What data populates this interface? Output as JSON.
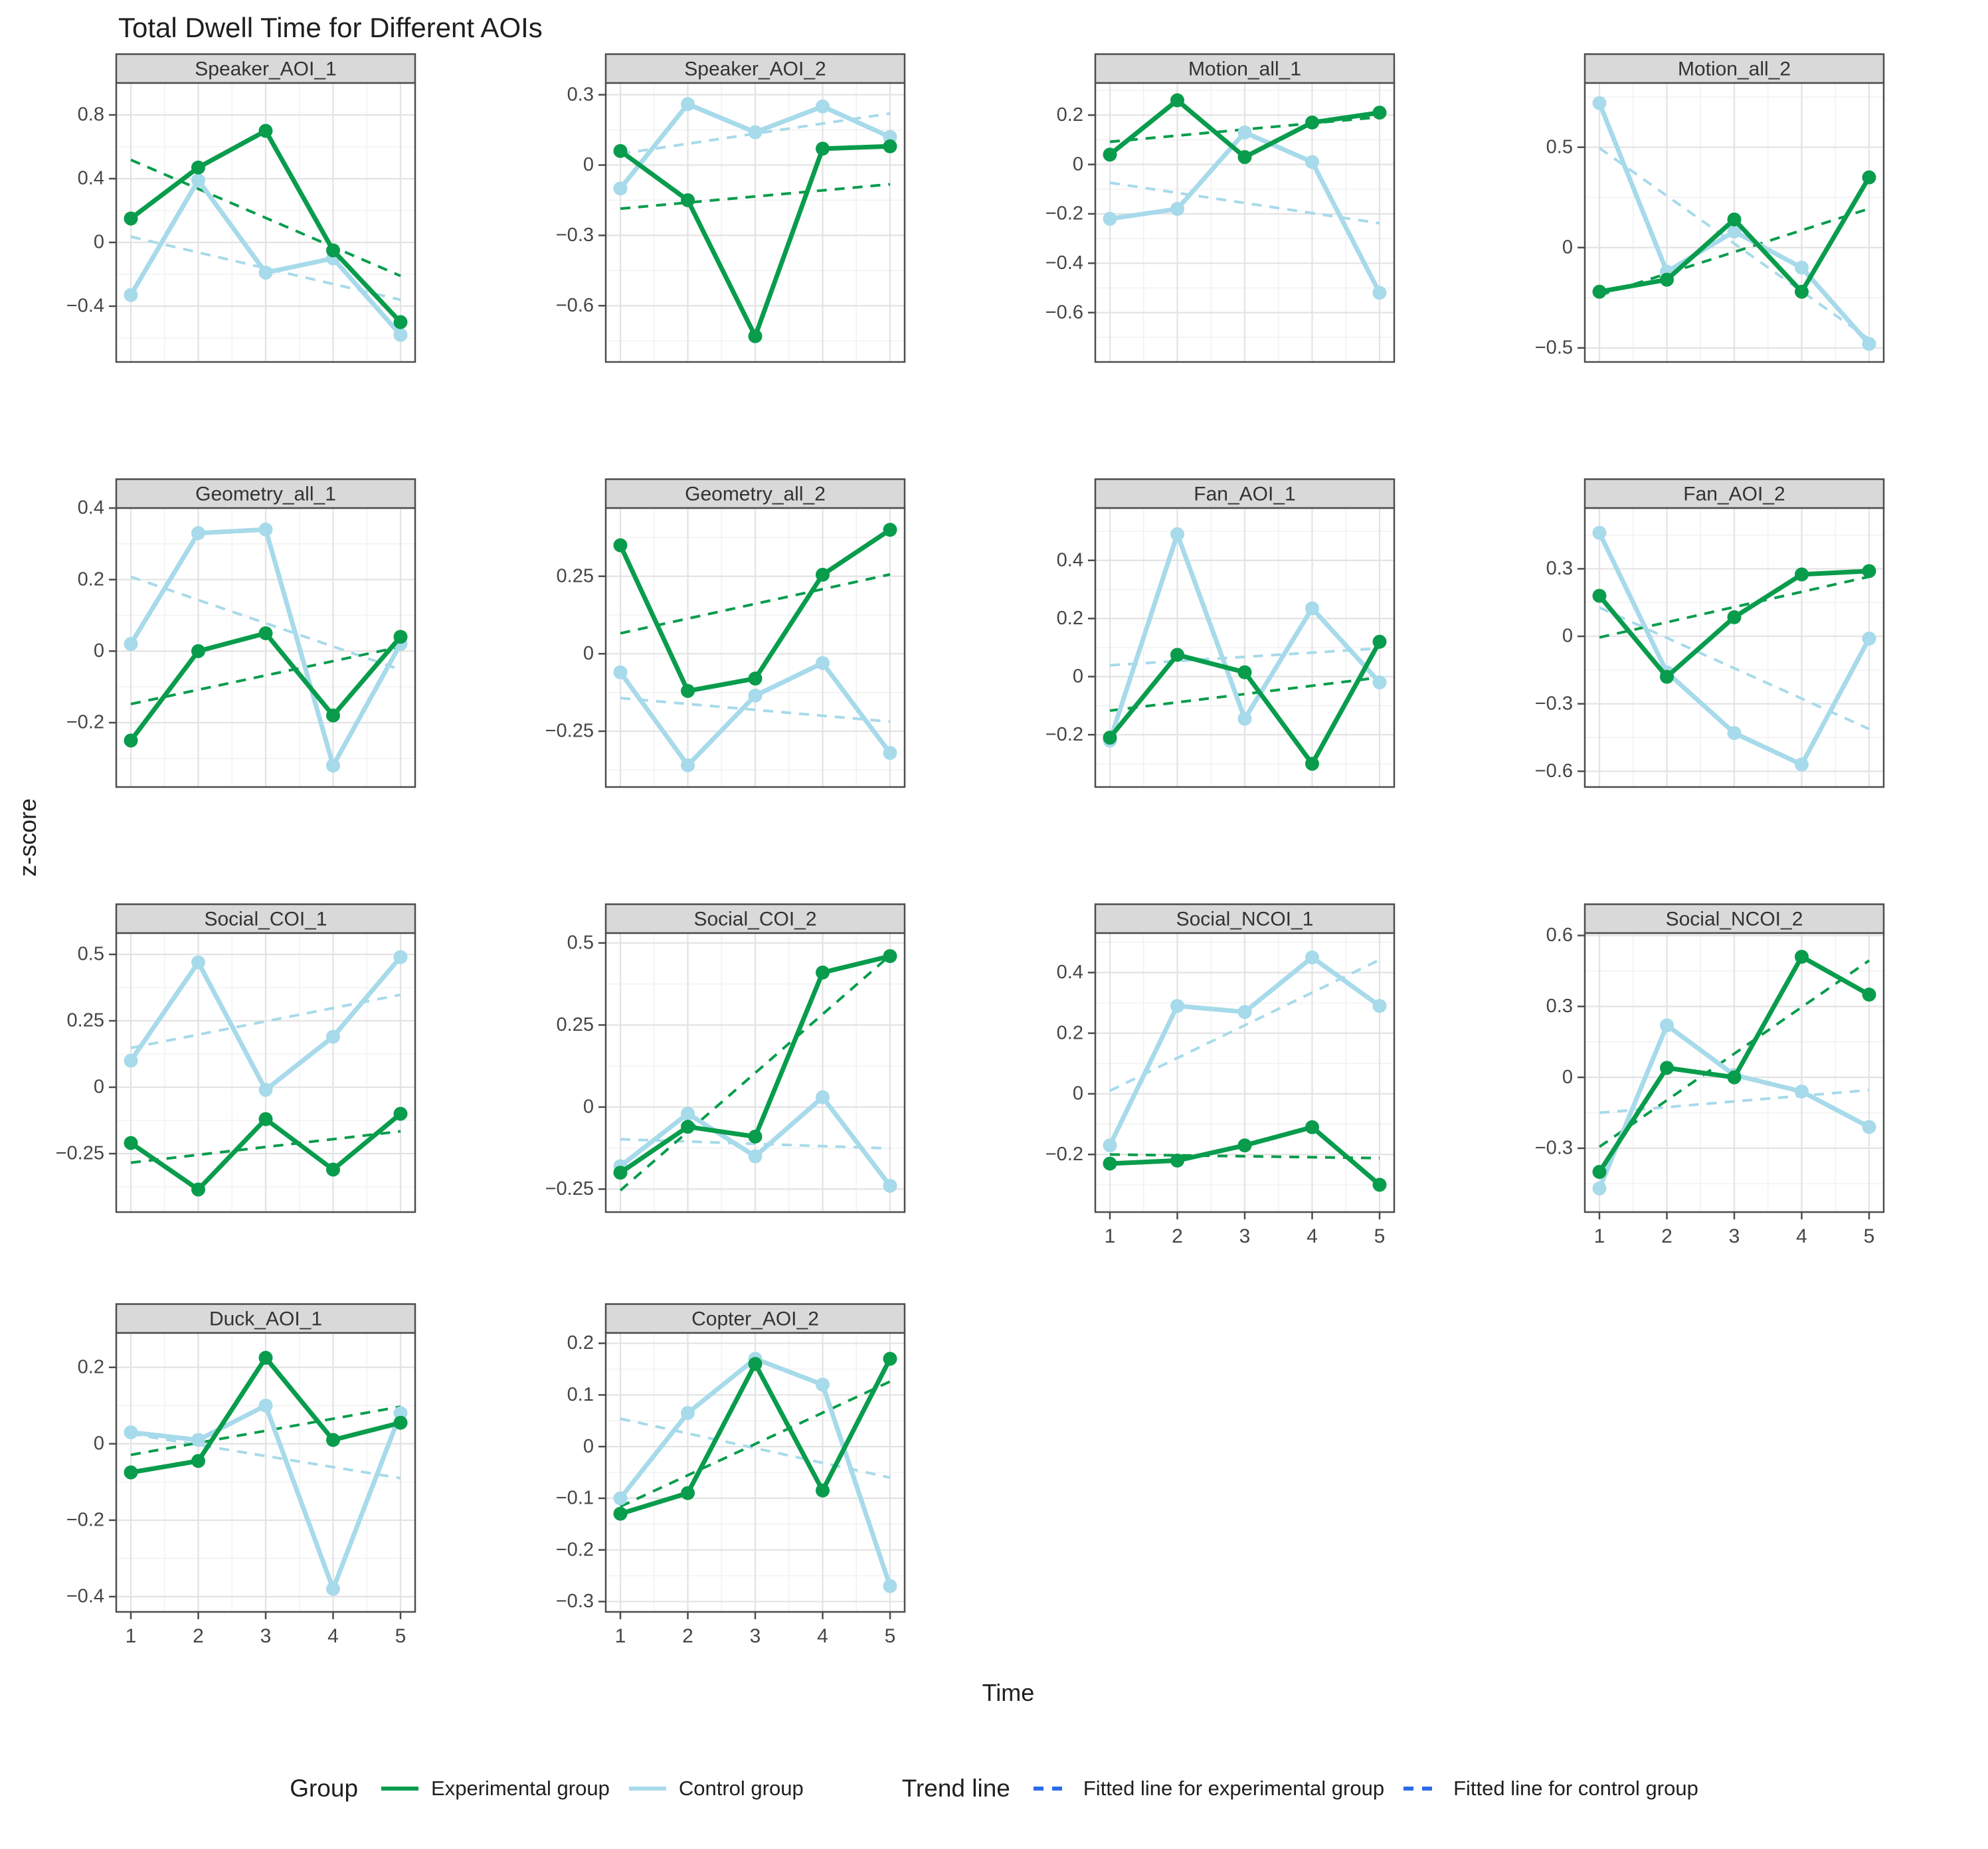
{
  "title": "Total Dwell Time for Different AOIs",
  "axes": {
    "y_label": "z-score",
    "x_label": "Time",
    "x_ticks": [
      "1",
      "2",
      "3",
      "4",
      "5"
    ]
  },
  "legend": {
    "group_title": "Group",
    "experimental_label": "Experimental group",
    "control_label": "Control group",
    "trend_title": "Trend line",
    "fit_experimental_label": "Fitted line for experimental group",
    "fit_control_label": "Fitted line for control group"
  },
  "colors": {
    "experimental": "#089C4C",
    "control": "#A7DAEA",
    "trend_legend": "#2B6BE8",
    "strip_fill": "#D9D9D9",
    "strip_text": "#333333",
    "panel_border": "#4D4D4D",
    "grid_major": "#E3E3E3",
    "grid_minor": "#F2F2F2",
    "tick_text": "#454545"
  },
  "chart_data": {
    "type": "line",
    "x": [
      1,
      2,
      3,
      4,
      5
    ],
    "series_names": [
      "Experimental group",
      "Control group"
    ],
    "trend_note": "dashed lines are OLS linear fits of each series over Time 1-5",
    "layout": {
      "grid": "on",
      "facet_columns": 4,
      "legend_position": "bottom"
    },
    "facets": [
      {
        "title": "Speaker_AOI_1",
        "ylim": [
          -0.75,
          1.0
        ],
        "yticks": [
          0.8,
          0.4,
          0,
          -0.4
        ],
        "show_x_axis": false,
        "experimental": [
          0.15,
          0.47,
          0.7,
          -0.05,
          -0.5
        ],
        "control": [
          -0.33,
          0.39,
          -0.19,
          -0.1,
          -0.58
        ]
      },
      {
        "title": "Speaker_AOI_2",
        "ylim": [
          -0.84,
          0.35
        ],
        "yticks": [
          0.3,
          0,
          -0.3,
          -0.6
        ],
        "show_x_axis": false,
        "experimental": [
          0.06,
          -0.15,
          -0.73,
          0.07,
          0.08
        ],
        "control": [
          -0.1,
          0.26,
          0.14,
          0.25,
          0.12
        ]
      },
      {
        "title": "Motion_all_1",
        "ylim": [
          -0.8,
          0.33
        ],
        "yticks": [
          0.2,
          0,
          -0.2,
          -0.4,
          -0.6
        ],
        "show_x_axis": false,
        "experimental": [
          0.04,
          0.26,
          0.03,
          0.17,
          0.21
        ],
        "control": [
          -0.22,
          -0.18,
          0.13,
          0.01,
          -0.52
        ]
      },
      {
        "title": "Motion_all_2",
        "ylim": [
          -0.57,
          0.82
        ],
        "yticks": [
          0.5,
          0,
          -0.5
        ],
        "show_x_axis": false,
        "experimental": [
          -0.22,
          -0.16,
          0.14,
          -0.22,
          0.35
        ],
        "control": [
          0.72,
          -0.12,
          0.08,
          -0.1,
          -0.48
        ]
      },
      {
        "title": "Geometry_all_1",
        "ylim": [
          -0.38,
          0.4
        ],
        "yticks": [
          0.4,
          0.2,
          0,
          -0.2
        ],
        "show_x_axis": false,
        "experimental": [
          -0.25,
          0.0,
          0.05,
          -0.18,
          0.04
        ],
        "control": [
          0.02,
          0.33,
          0.34,
          -0.32,
          0.02
        ]
      },
      {
        "title": "Geometry_all_2",
        "ylim": [
          -0.43,
          0.47
        ],
        "yticks": [
          0.25,
          0,
          -0.25
        ],
        "show_x_axis": false,
        "experimental": [
          0.35,
          -0.12,
          -0.08,
          0.255,
          0.4
        ],
        "control": [
          -0.06,
          -0.36,
          -0.135,
          -0.03,
          -0.32
        ]
      },
      {
        "title": "Fan_AOI_1",
        "ylim": [
          -0.38,
          0.58
        ],
        "yticks": [
          0.4,
          0.2,
          0,
          -0.2
        ],
        "show_x_axis": false,
        "experimental": [
          -0.21,
          0.075,
          0.015,
          -0.3,
          0.12
        ],
        "control": [
          -0.22,
          0.49,
          -0.145,
          0.235,
          -0.02
        ]
      },
      {
        "title": "Fan_AOI_2",
        "ylim": [
          -0.67,
          0.57
        ],
        "yticks": [
          0.3,
          0,
          -0.3,
          -0.6
        ],
        "show_x_axis": false,
        "experimental": [
          0.18,
          -0.18,
          0.085,
          0.275,
          0.29
        ],
        "control": [
          0.46,
          -0.16,
          -0.43,
          -0.57,
          -0.01
        ]
      },
      {
        "title": "Social_COI_1",
        "ylim": [
          -0.47,
          0.58
        ],
        "yticks": [
          0.5,
          0.25,
          0,
          -0.25
        ],
        "show_x_axis": false,
        "experimental": [
          -0.21,
          -0.385,
          -0.12,
          -0.31,
          -0.1
        ],
        "control": [
          0.1,
          0.47,
          -0.01,
          0.19,
          0.49
        ]
      },
      {
        "title": "Social_COI_2",
        "ylim": [
          -0.32,
          0.53
        ],
        "yticks": [
          0.5,
          0.25,
          0,
          -0.25
        ],
        "show_x_axis": false,
        "experimental": [
          -0.2,
          -0.06,
          -0.09,
          0.41,
          0.46
        ],
        "control": [
          -0.18,
          -0.02,
          -0.15,
          0.03,
          -0.24
        ]
      },
      {
        "title": "Social_NCOI_1",
        "ylim": [
          -0.39,
          0.53
        ],
        "yticks": [
          0.4,
          0.2,
          0,
          -0.2
        ],
        "show_x_axis": true,
        "experimental": [
          -0.23,
          -0.22,
          -0.17,
          -0.11,
          -0.3
        ],
        "control": [
          -0.17,
          0.29,
          0.27,
          0.45,
          0.29
        ]
      },
      {
        "title": "Social_NCOI_2",
        "ylim": [
          -0.57,
          0.61
        ],
        "yticks": [
          0.6,
          0.3,
          0,
          -0.3
        ],
        "show_x_axis": true,
        "experimental": [
          -0.4,
          0.04,
          0.0,
          0.51,
          0.35
        ],
        "control": [
          -0.47,
          0.22,
          0.01,
          -0.06,
          -0.21
        ]
      },
      {
        "title": "Duck_AOI_1",
        "ylim": [
          -0.44,
          0.29
        ],
        "yticks": [
          0.2,
          0,
          -0.2,
          -0.4
        ],
        "show_x_axis": true,
        "experimental": [
          -0.075,
          -0.045,
          0.225,
          0.01,
          0.055
        ],
        "control": [
          0.03,
          0.01,
          0.1,
          -0.38,
          0.08
        ]
      },
      {
        "title": "Copter_AOI_2",
        "ylim": [
          -0.32,
          0.22
        ],
        "yticks": [
          0.2,
          0.1,
          0,
          -0.1,
          -0.2,
          -0.3
        ],
        "show_x_axis": true,
        "experimental": [
          -0.13,
          -0.09,
          0.16,
          -0.085,
          0.17
        ],
        "control": [
          -0.1,
          0.065,
          0.17,
          0.12,
          -0.27
        ]
      }
    ]
  }
}
